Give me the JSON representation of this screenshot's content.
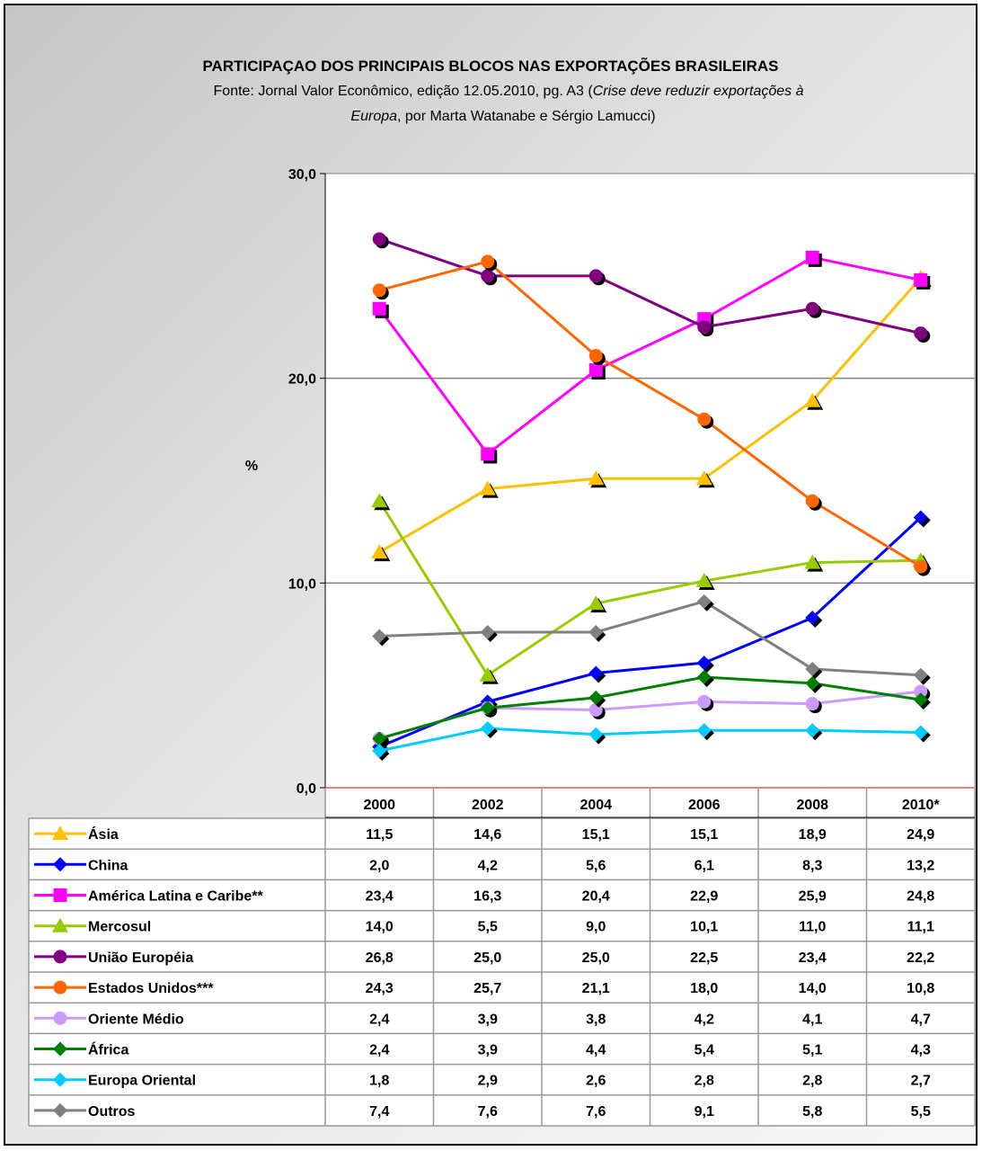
{
  "chart_data": {
    "type": "line",
    "title": "PARTICIPAÇAO DOS PRINCIPAIS BLOCOS NAS EXPORTAÇÕES BRASILEIRAS",
    "subtitle_line1_a": "Fonte: Jornal Valor Econômico, edição 12.05.2010, pg. A3 (",
    "subtitle_line1_b": "Crise deve reduzir exportações à",
    "subtitle_line2_a": "Europa",
    "subtitle_line2_b": ", por Marta Watanabe e Sérgio Lamucci)",
    "ylabel": "%",
    "xlabel": "",
    "ylim": [
      0,
      30
    ],
    "y_ticks": [
      "0,0",
      "10,0",
      "20,0",
      "30,0"
    ],
    "gridlines": "horizontal",
    "legend": "data-table",
    "categories": [
      "2000",
      "2002",
      "2004",
      "2006",
      "2008",
      "2010*"
    ],
    "series": [
      {
        "name": "Ásia",
        "color": "#FFC000",
        "marker": "triangle",
        "values": [
          11.5,
          14.6,
          15.1,
          15.1,
          18.9,
          24.9
        ],
        "labels": [
          "11,5",
          "14,6",
          "15,1",
          "15,1",
          "18,9",
          "24,9"
        ]
      },
      {
        "name": "China",
        "color": "#0000FF",
        "marker": "diamond",
        "values": [
          2.0,
          4.2,
          5.6,
          6.1,
          8.3,
          13.2
        ],
        "labels": [
          "2,0",
          "4,2",
          "5,6",
          "6,1",
          "8,3",
          "13,2"
        ]
      },
      {
        "name": "América Latina e Caribe**",
        "color": "#FF00FF",
        "marker": "square",
        "values": [
          23.4,
          16.3,
          20.4,
          22.9,
          25.9,
          24.8
        ],
        "labels": [
          "23,4",
          "16,3",
          "20,4",
          "22,9",
          "25,9",
          "24,8"
        ]
      },
      {
        "name": "Mercosul",
        "color": "#99CC00",
        "marker": "triangle",
        "values": [
          14.0,
          5.5,
          9.0,
          10.1,
          11.0,
          11.1
        ],
        "labels": [
          "14,0",
          "5,5",
          "9,0",
          "10,1",
          "11,0",
          "11,1"
        ]
      },
      {
        "name": "União Européia",
        "color": "#800080",
        "marker": "circle",
        "values": [
          26.8,
          25.0,
          25.0,
          22.5,
          23.4,
          22.2
        ],
        "labels": [
          "26,8",
          "25,0",
          "25,0",
          "22,5",
          "23,4",
          "22,2"
        ]
      },
      {
        "name": "Estados Unidos***",
        "color": "#FF6600",
        "marker": "circle",
        "values": [
          24.3,
          25.7,
          21.1,
          18.0,
          14.0,
          10.8
        ],
        "labels": [
          "24,3",
          "25,7",
          "21,1",
          "18,0",
          "14,0",
          "10,8"
        ]
      },
      {
        "name": "Oriente Médio",
        "color": "#CC99FF",
        "marker": "circle",
        "values": [
          2.4,
          3.9,
          3.8,
          4.2,
          4.1,
          4.7
        ],
        "labels": [
          "2,4",
          "3,9",
          "3,8",
          "4,2",
          "4,1",
          "4,7"
        ]
      },
      {
        "name": "África",
        "color": "#008000",
        "marker": "diamond",
        "values": [
          2.4,
          3.9,
          4.4,
          5.4,
          5.1,
          4.3
        ],
        "labels": [
          "2,4",
          "3,9",
          "4,4",
          "5,4",
          "5,1",
          "4,3"
        ]
      },
      {
        "name": "Europa Oriental",
        "color": "#00CCFF",
        "marker": "diamond",
        "values": [
          1.8,
          2.9,
          2.6,
          2.8,
          2.8,
          2.7
        ],
        "labels": [
          "1,8",
          "2,9",
          "2,6",
          "2,8",
          "2,8",
          "2,7"
        ]
      },
      {
        "name": "Outros",
        "color": "#808080",
        "marker": "diamond",
        "values": [
          7.4,
          7.6,
          7.6,
          9.1,
          5.8,
          5.5
        ],
        "labels": [
          "7,4",
          "7,6",
          "7,6",
          "9,1",
          "5,8",
          "5,5"
        ]
      }
    ]
  }
}
